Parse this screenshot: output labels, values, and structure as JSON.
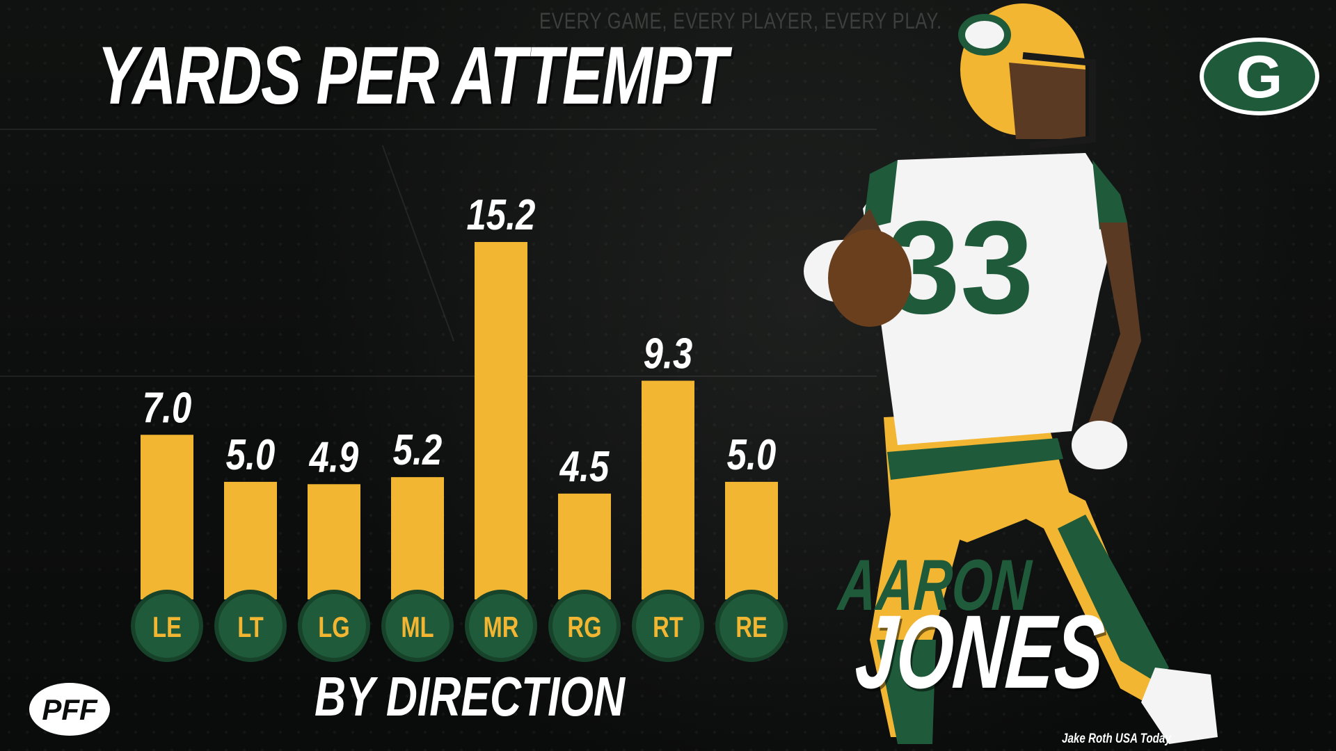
{
  "header": {
    "tagline": "EVERY GAME, EVERY PLAYER, EVERY PLAY."
  },
  "chart_data": {
    "type": "bar",
    "title": "YARDS PER ATTEMPT",
    "subtitle": "BY DIRECTION",
    "categories": [
      "LE",
      "LT",
      "LG",
      "ML",
      "MR",
      "RG",
      "RT",
      "RE"
    ],
    "values": [
      7.0,
      5.0,
      4.9,
      5.2,
      15.2,
      4.5,
      9.3,
      5.0
    ],
    "value_labels": [
      "7.0",
      "5.0",
      "4.9",
      "5.2",
      "15.2",
      "4.5",
      "9.3",
      "5.0"
    ],
    "ylim": [
      0,
      15.2
    ],
    "grid": false,
    "legend": "none",
    "colors": {
      "bar": "#f2b632",
      "category_badge": "#1f5a3a",
      "category_text": "#f2b632",
      "value_text": "#ffffff"
    }
  },
  "player": {
    "first_name": "AARON",
    "last_name": "JONES",
    "jersey_number": "33"
  },
  "credit": "Jake Roth USA Today",
  "logos": {
    "brand": "PFF",
    "team": "G"
  }
}
